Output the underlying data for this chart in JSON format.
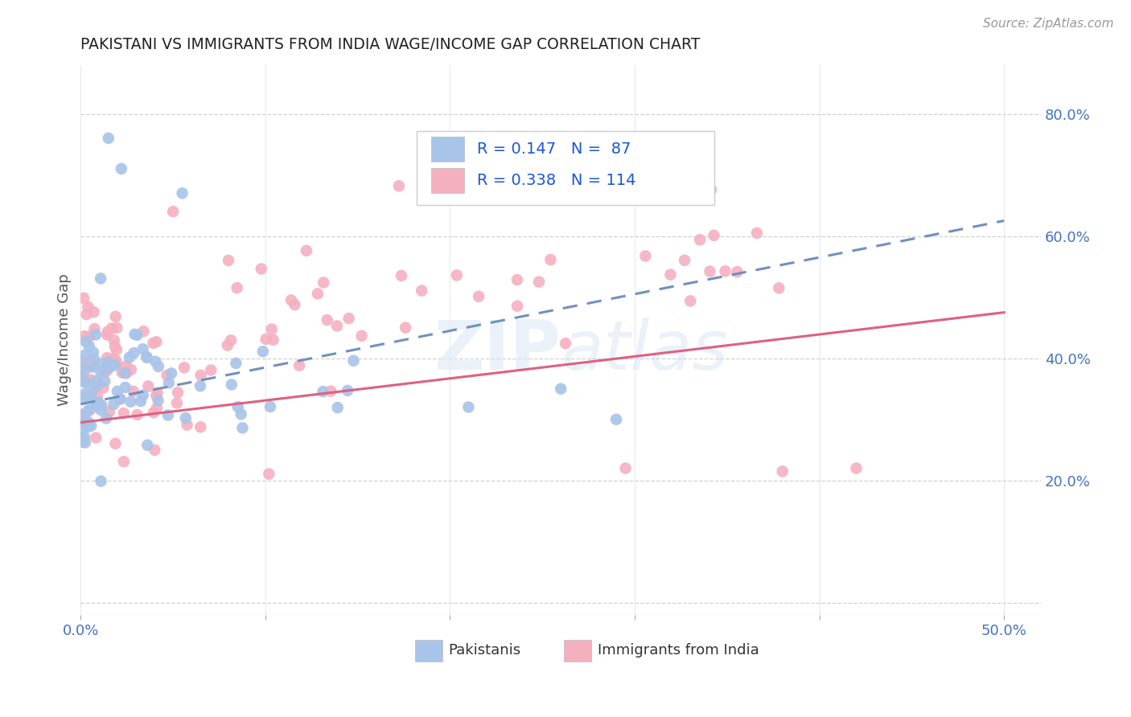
{
  "title": "PAKISTANI VS IMMIGRANTS FROM INDIA WAGE/INCOME GAP CORRELATION CHART",
  "source": "Source: ZipAtlas.com",
  "ylabel": "Wage/Income Gap",
  "xlim": [
    0.0,
    0.52
  ],
  "ylim": [
    -0.02,
    0.88
  ],
  "xtick_vals": [
    0.0,
    0.1,
    0.2,
    0.3,
    0.4,
    0.5
  ],
  "xtick_labels_show": [
    "0.0%",
    "",
    "",
    "",
    "",
    "50.0%"
  ],
  "ytick_right_vals": [
    0.2,
    0.4,
    0.6,
    0.8
  ],
  "ytick_right_labels": [
    "20.0%",
    "40.0%",
    "60.0%",
    "80.0%"
  ],
  "blue_R": 0.147,
  "blue_N": 87,
  "pink_R": 0.338,
  "pink_N": 114,
  "blue_color": "#a8c4e8",
  "blue_line_color": "#7090c0",
  "pink_color": "#f5b0c0",
  "pink_line_color": "#e06080",
  "background_color": "#ffffff",
  "grid_color": "#cccccc",
  "title_color": "#222222",
  "axis_label_color": "#555555",
  "tick_color": "#4472c4",
  "watermark": "ZIPatlas",
  "legend_text_color": "#1a56db"
}
